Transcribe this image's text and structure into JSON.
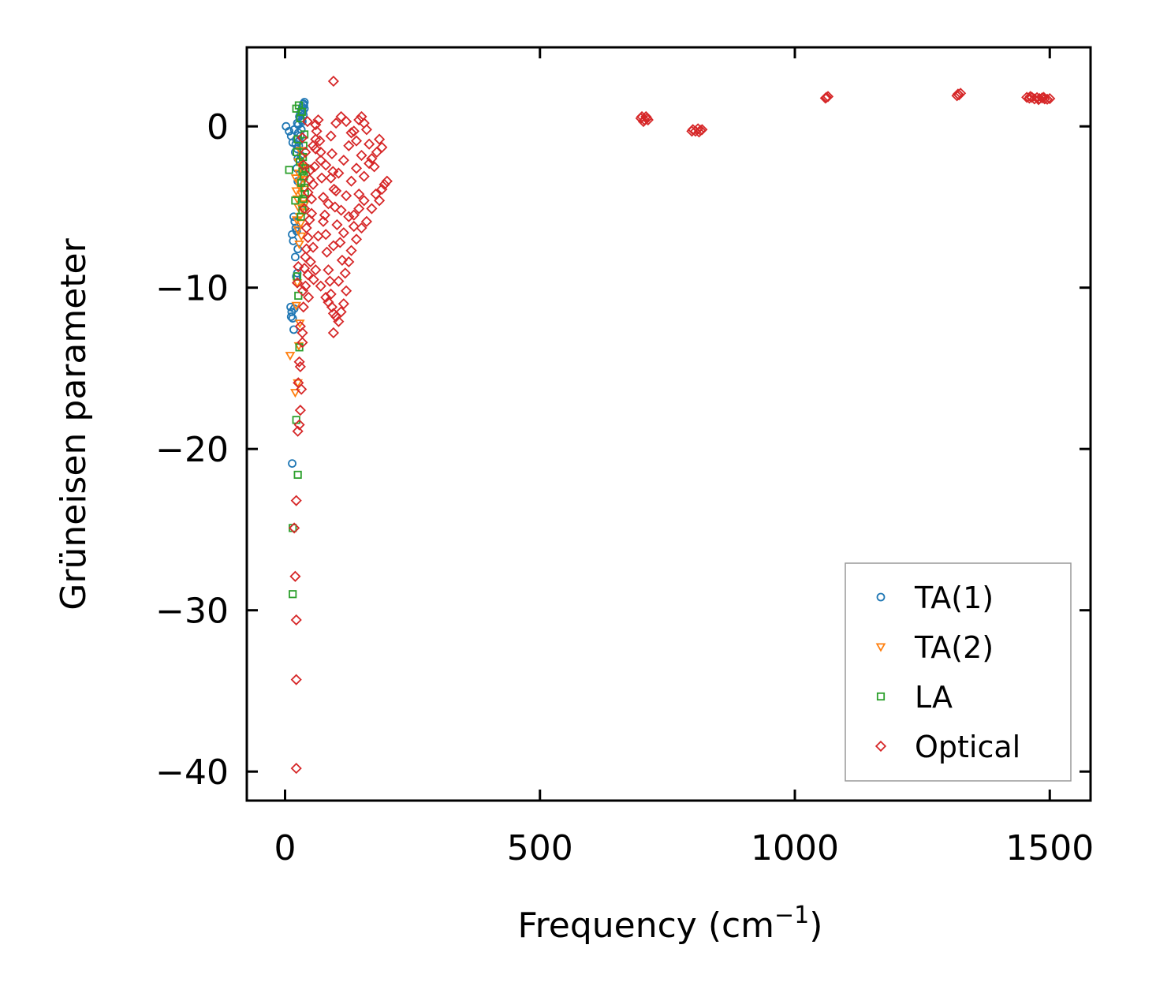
{
  "chart_data": {
    "type": "scatter",
    "title": "",
    "xlabel": "Frequency (cm",
    "xlabel_sup": "−1",
    "xlabel_tail": ")",
    "ylabel": "Grüneisen parameter",
    "xlim": [
      -75,
      1580
    ],
    "ylim": [
      -41.8,
      4.9
    ],
    "xticks": [
      0,
      500,
      1000,
      1500
    ],
    "xtick_labels": [
      "0",
      "500",
      "1000",
      "1500"
    ],
    "yticks": [
      0,
      -10,
      -20,
      -30,
      -40
    ],
    "ytick_labels": [
      "0",
      "−10",
      "−20",
      "−30",
      "−40"
    ],
    "legend_position": "lower-right",
    "series": [
      {
        "name": "TA(1)",
        "marker": "circle",
        "color": "#1f77b4",
        "points": [
          [
            2,
            0
          ],
          [
            8,
            -0.3
          ],
          [
            12,
            -0.6
          ],
          [
            15,
            -1
          ],
          [
            18,
            -0.2
          ],
          [
            20,
            -1.6
          ],
          [
            22,
            -0.8
          ],
          [
            24,
            0.2
          ],
          [
            26,
            -0.4
          ],
          [
            28,
            0.6
          ],
          [
            30,
            0.8
          ],
          [
            32,
            1
          ],
          [
            34,
            1.2
          ],
          [
            36,
            1.4
          ],
          [
            38,
            1.1
          ],
          [
            27,
            -1.2
          ],
          [
            25,
            -2
          ],
          [
            23,
            -2.6
          ],
          [
            29,
            -2.1
          ],
          [
            31,
            -1.8
          ],
          [
            17,
            -5.6
          ],
          [
            19,
            -5.9
          ],
          [
            21,
            -6.3
          ],
          [
            14,
            -6.7
          ],
          [
            23,
            -6.5
          ],
          [
            16,
            -7.1
          ],
          [
            25,
            -7.6
          ],
          [
            20,
            -8.1
          ],
          [
            22,
            -9.3
          ],
          [
            24,
            -9.1
          ],
          [
            18,
            -11.3
          ],
          [
            13,
            -11.5
          ],
          [
            11,
            -11.2
          ],
          [
            15,
            -11.9
          ],
          [
            12,
            -11.8
          ],
          [
            17,
            -12.6
          ],
          [
            14,
            -20.9
          ],
          [
            25,
            -3.4
          ],
          [
            33,
            0.4
          ],
          [
            35,
            0.9
          ],
          [
            37,
            1.3
          ],
          [
            26,
            0.1
          ],
          [
            30,
            -0.6
          ],
          [
            32,
            -0.2
          ],
          [
            34,
            0.3
          ],
          [
            36,
            0.7
          ],
          [
            38,
            1.5
          ],
          [
            28,
            -0.9
          ],
          [
            24,
            -1.4
          ],
          [
            21,
            -1.1
          ]
        ]
      },
      {
        "name": "TA(2)",
        "marker": "triangle-down",
        "color": "#ff7f0e",
        "points": [
          [
            10,
            -14.2
          ],
          [
            20,
            -16.5
          ],
          [
            25,
            -15.9
          ],
          [
            22,
            -4
          ],
          [
            24,
            -4.5
          ],
          [
            26,
            -5
          ],
          [
            28,
            -3.5
          ],
          [
            30,
            -3.8
          ],
          [
            32,
            -4.2
          ],
          [
            34,
            -5.1
          ],
          [
            36,
            -4.6
          ],
          [
            38,
            -3.9
          ],
          [
            27,
            -2.9
          ],
          [
            29,
            -5.6
          ],
          [
            31,
            -6
          ],
          [
            33,
            -2.5
          ],
          [
            35,
            -3
          ],
          [
            37,
            -5.3
          ],
          [
            39,
            -4.8
          ],
          [
            23,
            -5.8
          ],
          [
            25,
            -6.4
          ],
          [
            21,
            -3.2
          ],
          [
            26,
            -2.2
          ],
          [
            30,
            -1.5
          ],
          [
            34,
            -1.9
          ],
          [
            36,
            -2.7
          ],
          [
            38,
            -3.3
          ],
          [
            32,
            -6.8
          ],
          [
            28,
            -7.3
          ],
          [
            24,
            -9.7
          ],
          [
            22,
            -11.1
          ],
          [
            27,
            -13.6
          ],
          [
            29,
            -12.2
          ]
        ]
      },
      {
        "name": "LA",
        "marker": "square",
        "color": "#2ca02c",
        "points": [
          [
            8,
            -2.7
          ],
          [
            15,
            -24.9
          ],
          [
            15,
            -29
          ],
          [
            25,
            -21.6
          ],
          [
            22,
            -18.2
          ],
          [
            28,
            -13.7
          ],
          [
            26,
            -10.5
          ],
          [
            24,
            -9.3
          ],
          [
            20,
            -4.6
          ],
          [
            32,
            -3.5
          ],
          [
            34,
            -2.8
          ],
          [
            36,
            -1.2
          ],
          [
            38,
            -0.5
          ],
          [
            30,
            0.5
          ],
          [
            22,
            1.1
          ],
          [
            27,
            1.3
          ],
          [
            33,
            0.9
          ],
          [
            35,
            -1.9
          ],
          [
            37,
            -3.1
          ],
          [
            39,
            -4.2
          ],
          [
            31,
            -5.6
          ],
          [
            29,
            -2.2
          ],
          [
            25,
            -0.8
          ],
          [
            23,
            -1.6
          ],
          [
            40,
            -2.6
          ],
          [
            38,
            -3.8
          ],
          [
            36,
            -4.5
          ],
          [
            34,
            -5.2
          ]
        ]
      },
      {
        "name": "Optical",
        "marker": "diamond",
        "color": "#d62728",
        "points": [
          [
            95,
            2.8
          ],
          [
            95,
            -12.8
          ],
          [
            22,
            -39.8
          ],
          [
            22,
            -34.3
          ],
          [
            22,
            -30.6
          ],
          [
            20,
            -27.9
          ],
          [
            22,
            -23.2
          ],
          [
            18,
            -24.9
          ],
          [
            25,
            -18.9
          ],
          [
            28,
            -18.5
          ],
          [
            30,
            -17.6
          ],
          [
            26,
            -15.9
          ],
          [
            32,
            -16.3
          ],
          [
            28,
            -14.6
          ],
          [
            30,
            -14.9
          ],
          [
            34,
            -13.4
          ],
          [
            30,
            -12.4
          ],
          [
            34,
            -12.8
          ],
          [
            36,
            -11.2
          ],
          [
            35,
            -10.2
          ],
          [
            24,
            -9.7
          ],
          [
            26,
            -8.7
          ],
          [
            40,
            -8.1
          ],
          [
            42,
            -7.6
          ],
          [
            45,
            -6.9
          ],
          [
            48,
            -5.8
          ],
          [
            52,
            -4.5
          ],
          [
            55,
            -3.6
          ],
          [
            58,
            -2.5
          ],
          [
            60,
            -1.4
          ],
          [
            62,
            -0.3
          ],
          [
            65,
            0.4
          ],
          [
            68,
            -0.9
          ],
          [
            70,
            -2.1
          ],
          [
            72,
            -3.2
          ],
          [
            75,
            -4.4
          ],
          [
            78,
            -5.5
          ],
          [
            80,
            -6.7
          ],
          [
            82,
            -7.8
          ],
          [
            85,
            -8.9
          ],
          [
            88,
            -9.6
          ],
          [
            90,
            -10.4
          ],
          [
            92,
            -11.2
          ],
          [
            95,
            -11.6
          ],
          [
            100,
            -11.8
          ],
          [
            105,
            -12.1
          ],
          [
            110,
            -11.5
          ],
          [
            115,
            -11
          ],
          [
            120,
            -10.2
          ],
          [
            118,
            -9.1
          ],
          [
            112,
            -8.3
          ],
          [
            108,
            -7.2
          ],
          [
            102,
            -6.1
          ],
          [
            98,
            -5
          ],
          [
            96,
            -3.9
          ],
          [
            94,
            -2.8
          ],
          [
            92,
            -1.7
          ],
          [
            90,
            -0.6
          ],
          [
            100,
            0.2
          ],
          [
            110,
            0.6
          ],
          [
            120,
            0.3
          ],
          [
            130,
            -0.4
          ],
          [
            140,
            -0.9
          ],
          [
            150,
            0.6
          ],
          [
            160,
            -0.2
          ],
          [
            165,
            -1.1
          ],
          [
            170,
            -2
          ],
          [
            175,
            -2.5
          ],
          [
            180,
            -1.6
          ],
          [
            185,
            -0.8
          ],
          [
            190,
            -1.3
          ],
          [
            195,
            -3.6
          ],
          [
            200,
            -3.4
          ],
          [
            190,
            -3.9
          ],
          [
            185,
            -4.6
          ],
          [
            178,
            -4.2
          ],
          [
            170,
            -5.1
          ],
          [
            160,
            -5.9
          ],
          [
            150,
            -6.3
          ],
          [
            140,
            -7
          ],
          [
            130,
            -7.7
          ],
          [
            125,
            -8.4
          ],
          [
            135,
            -5.5
          ],
          [
            145,
            -4.2
          ],
          [
            155,
            -3.1
          ],
          [
            165,
            -2.3
          ],
          [
            150,
            -1.8
          ],
          [
            140,
            -2.6
          ],
          [
            130,
            -3.4
          ],
          [
            120,
            -4.3
          ],
          [
            110,
            -5.2
          ],
          [
            100,
            -4
          ],
          [
            90,
            -3.2
          ],
          [
            80,
            -2.4
          ],
          [
            70,
            -1.6
          ],
          [
            60,
            -0.8
          ],
          [
            85,
            -4.8
          ],
          [
            75,
            -5.9
          ],
          [
            65,
            -6.8
          ],
          [
            55,
            -7.5
          ],
          [
            50,
            -8.4
          ],
          [
            45,
            -9.2
          ],
          [
            40,
            -9.9
          ],
          [
            38,
            -8.8
          ],
          [
            45,
            -4.1
          ],
          [
            50,
            -2.7
          ],
          [
            55,
            -1.2
          ],
          [
            60,
            0.1
          ],
          [
            115,
            -2.1
          ],
          [
            125,
            -1.2
          ],
          [
            135,
            -0.3
          ],
          [
            145,
            0.4
          ],
          [
            155,
            0.2
          ],
          [
            105,
            -2.9
          ],
          [
            95,
            -7.4
          ],
          [
            105,
            -9.6
          ],
          [
            115,
            -6.6
          ],
          [
            125,
            -5.6
          ],
          [
            135,
            -6.2
          ],
          [
            145,
            -5.1
          ],
          [
            155,
            -4.6
          ],
          [
            80,
            -10.6
          ],
          [
            85,
            -10.9
          ],
          [
            70,
            -9.9
          ],
          [
            60,
            -8.9
          ],
          [
            42,
            -6.3
          ],
          [
            38,
            -5.1
          ],
          [
            36,
            -2.4
          ],
          [
            34,
            -0.7
          ],
          [
            40,
            -1.6
          ],
          [
            44,
            0.3
          ],
          [
            48,
            -3.3
          ],
          [
            52,
            -5.4
          ],
          [
            56,
            -9.5
          ],
          [
            46,
            -10.6
          ],
          [
            700,
            0.6
          ],
          [
            705,
            0.4
          ],
          [
            710,
            0.5
          ],
          [
            698,
            0.5
          ],
          [
            703,
            0.3
          ],
          [
            708,
            0.6
          ],
          [
            712,
            0.4
          ],
          [
            800,
            -0.2
          ],
          [
            805,
            -0.3
          ],
          [
            810,
            -0.15
          ],
          [
            815,
            -0.25
          ],
          [
            798,
            -0.3
          ],
          [
            812,
            -0.35
          ],
          [
            818,
            -0.2
          ],
          [
            1062,
            1.8
          ],
          [
            1065,
            1.85
          ],
          [
            1060,
            1.75
          ],
          [
            1320,
            2
          ],
          [
            1322,
            1.95
          ],
          [
            1325,
            2.05
          ],
          [
            1318,
            1.9
          ],
          [
            1455,
            1.8
          ],
          [
            1460,
            1.75
          ],
          [
            1465,
            1.8
          ],
          [
            1470,
            1.7
          ],
          [
            1475,
            1.78
          ],
          [
            1480,
            1.72
          ],
          [
            1485,
            1.76
          ],
          [
            1490,
            1.7
          ],
          [
            1495,
            1.68
          ],
          [
            1500,
            1.72
          ],
          [
            1462,
            1.85
          ],
          [
            1478,
            1.66
          ],
          [
            1488,
            1.8
          ]
        ]
      }
    ]
  }
}
